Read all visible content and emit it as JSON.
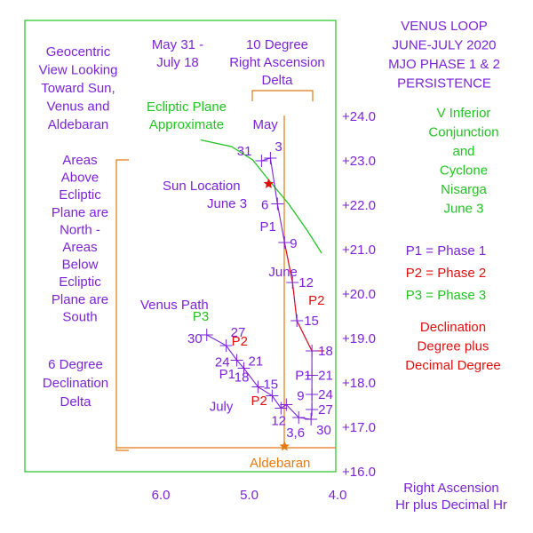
{
  "colors": {
    "violet": "#7b24d6",
    "green": "#22c322",
    "red": "#e01010",
    "orange": "#e37b12",
    "frame": "#22c322"
  },
  "title_lines": [
    "VENUS LOOP",
    "JUNE-JULY 2020",
    "MJO PHASE 1 & 2",
    "PERSISTENCE"
  ],
  "conjunction_lines": [
    "V Inferior",
    "Conjunction",
    "and",
    "Cyclone",
    "Nisarga",
    "June 3"
  ],
  "phase_legend": [
    "P1 = Phase 1",
    "P2 = Phase 2",
    "P3 = Phase 3"
  ],
  "declination_note": [
    "Declination",
    "Degree plus",
    "Decimal Degree"
  ],
  "geocentric_note": [
    "Geocentric",
    "View Looking",
    "Toward Sun,",
    "Venus and",
    "Aldebaran"
  ],
  "date_range": [
    "May 31 -",
    "July 18"
  ],
  "ra_delta_label": [
    "10 Degree",
    "Right Ascension",
    "Delta"
  ],
  "ecliptic_label": [
    "Ecliptic Plane",
    "Approximate"
  ],
  "areas_note": [
    "Areas",
    "Above",
    "Ecliptic",
    "Plane are",
    "North -",
    "Areas",
    "Below",
    "Ecliptic",
    "Plane are",
    "South"
  ],
  "dec_delta_label": [
    "6 Degree",
    "Declination",
    "Delta"
  ],
  "sun_location_label": "Sun Location",
  "june3_label": "June 3",
  "venus_path_label": "Venus Path",
  "may_label": "May",
  "june_label": "June",
  "july_label": "July",
  "aldebaran_label": "Aldebaran",
  "x_axis_title": [
    "Right Ascension",
    "Hr plus Decimal Hr"
  ],
  "chart_data": {
    "type": "line",
    "title": "VENUS LOOP JUNE-JULY 2020 MJO PHASE 1 & 2 PERSISTENCE",
    "xlabel": "Right Ascension Hr plus Decimal Hr",
    "ylabel": "",
    "x_axis_reversed": true,
    "xlim": [
      6.55,
      4.0
    ],
    "ylim": [
      16.0,
      24.0
    ],
    "x_ticks": [
      6.0,
      5.0,
      4.0
    ],
    "x_tick_labels": [
      "6.0",
      "5.0",
      "4.0"
    ],
    "y_ticks": [
      24,
      23,
      22,
      21,
      20,
      19,
      18,
      17,
      16
    ],
    "y_tick_labels": [
      "+24.0",
      "+23.0",
      "+22.0",
      "+21.0",
      "+20.0",
      "+19.0",
      "+18.0",
      "+17.0",
      "+16.0"
    ],
    "series": [
      {
        "name": "Venus Path",
        "points": [
          {
            "date": "May 31",
            "label": "31",
            "ra": 4.86,
            "dec": 22.98
          },
          {
            "date": "June 3",
            "label": "3",
            "ra": 4.76,
            "dec": 23.04
          },
          {
            "date": "June 6",
            "label": "6",
            "ra": 4.68,
            "dec": 22.01
          },
          {
            "date": "June 9",
            "label": "9",
            "ra": 4.6,
            "dec": 21.14
          },
          {
            "date": "June 12",
            "label": "12",
            "ra": 4.51,
            "dec": 20.24
          },
          {
            "date": "June 15",
            "label": "15",
            "ra": 4.46,
            "dec": 19.38
          },
          {
            "date": "June 18",
            "label": "18",
            "ra": 4.29,
            "dec": 18.7
          },
          {
            "date": "June 21",
            "label": "21",
            "ra": 4.29,
            "dec": 18.15
          },
          {
            "date": "June 24",
            "label": "24",
            "ra": 4.29,
            "dec": 17.72
          },
          {
            "date": "June 27",
            "label": "27",
            "ra": 4.29,
            "dec": 17.38
          },
          {
            "date": "June 30",
            "label": "30",
            "ra": 4.3,
            "dec": 17.16
          },
          {
            "date": "July 3",
            "label": "3,6",
            "ra": 4.44,
            "dec": 17.2
          },
          {
            "date": "July 9",
            "label": "9",
            "ra": 4.58,
            "dec": 17.49
          },
          {
            "date": "July 12",
            "label": "12",
            "ra": 4.64,
            "dec": 17.41
          },
          {
            "date": "July 15",
            "label": "15",
            "ra": 4.74,
            "dec": 17.69
          },
          {
            "date": "July 18",
            "label": "18",
            "ra": 4.9,
            "dec": 17.89
          },
          {
            "date": "June 21",
            "label": "21",
            "ra": 5.06,
            "dec": 18.31
          },
          {
            "date": "June 24",
            "label": "24",
            "ra": 5.14,
            "dec": 18.49
          },
          {
            "date": "June 27",
            "label": "27",
            "ra": 5.26,
            "dec": 18.82
          },
          {
            "date": "June 30",
            "label": "30",
            "ra": 5.48,
            "dec": 19.06
          }
        ]
      }
    ],
    "ecliptic_curve": [
      {
        "ra": 5.55,
        "dec": 23.45
      },
      {
        "ra": 5.2,
        "dec": 23.3
      },
      {
        "ra": 4.96,
        "dec": 23.0
      },
      {
        "ra": 4.8,
        "dec": 22.6
      },
      {
        "ra": 4.55,
        "dec": 22.0
      },
      {
        "ra": 4.34,
        "dec": 21.4
      },
      {
        "ra": 4.18,
        "dec": 20.9
      }
    ],
    "sun": {
      "label": "Sun Location",
      "ra": 4.78,
      "dec": 22.46
    },
    "aldebaran": {
      "label": "Aldebaran",
      "ra": 4.6,
      "dec": 16.55
    },
    "phase_markers": [
      {
        "label": "P1",
        "ra": 4.88,
        "dec": 21.4,
        "color": "violet"
      },
      {
        "label": "P2",
        "ra": 4.33,
        "dec": 19.74,
        "color": "red"
      },
      {
        "label": "P3",
        "ra": 5.64,
        "dec": 19.38,
        "color": "green"
      },
      {
        "label": "P2",
        "ra": 5.2,
        "dec": 18.82,
        "color": "red"
      },
      {
        "label": "P1",
        "ra": 5.34,
        "dec": 18.08,
        "color": "violet"
      },
      {
        "label": "P2",
        "ra": 4.98,
        "dec": 17.48,
        "color": "red"
      },
      {
        "label": "P1",
        "ra": 4.48,
        "dec": 18.05,
        "color": "violet"
      }
    ],
    "month_labels": [
      {
        "label": "May",
        "ra": 4.96,
        "dec": 23.7
      },
      {
        "label": "June",
        "ra": 4.78,
        "dec": 20.38
      },
      {
        "label": "July",
        "ra": 5.45,
        "dec": 17.35
      }
    ]
  }
}
